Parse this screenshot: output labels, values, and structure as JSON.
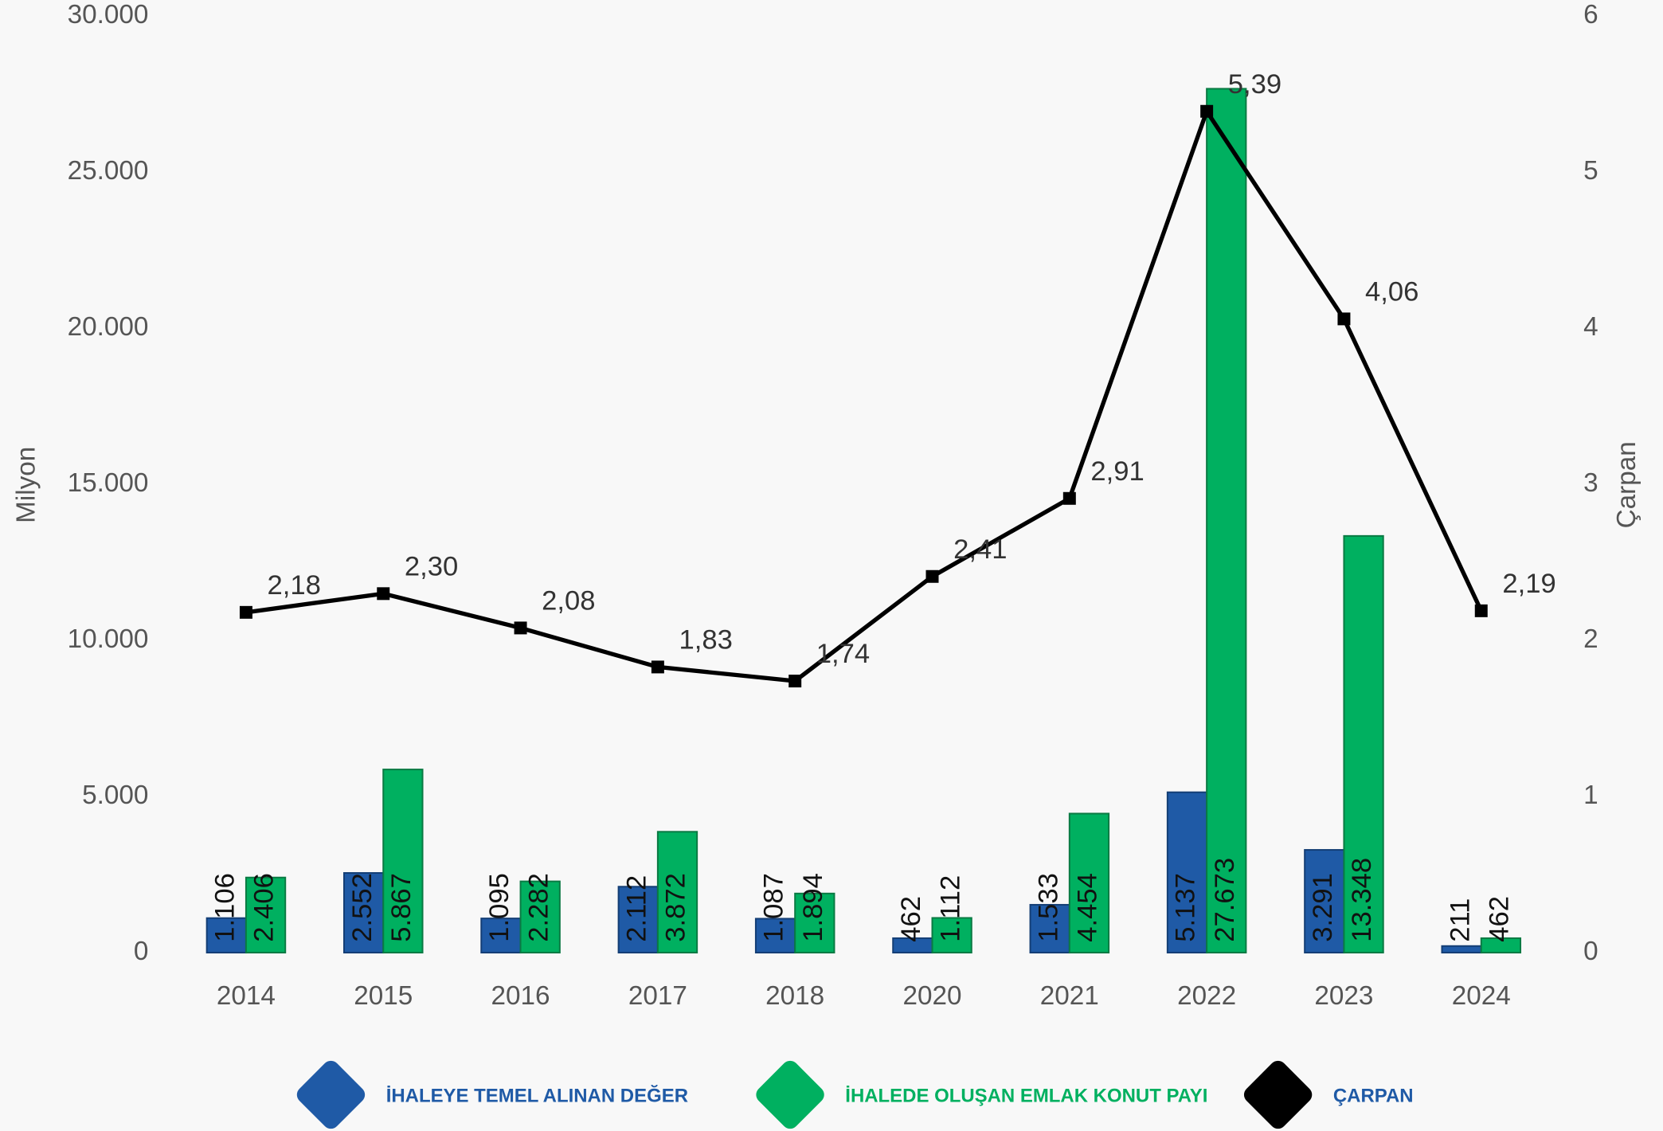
{
  "chart_data": {
    "type": "bar-line",
    "categories": [
      "2014",
      "2015",
      "2016",
      "2017",
      "2018",
      "2020",
      "2021",
      "2022",
      "2023",
      "2024"
    ],
    "series": [
      {
        "name": "İHALEYE TEMEL ALINAN DEĞER",
        "color": "#1f5aa6",
        "type": "bar",
        "values": [
          1106,
          2552,
          1095,
          2112,
          1087,
          462,
          1533,
          5137,
          3291,
          211
        ],
        "value_labels": [
          "1.106",
          "2.552",
          "1.095",
          "2.112",
          "1.087",
          "462",
          "1.533",
          "5.137",
          "3.291",
          "211"
        ]
      },
      {
        "name": "İHALEDE OLUŞAN EMLAK KONUT PAYI",
        "color": "#00b060",
        "type": "bar",
        "values": [
          2406,
          5867,
          2282,
          3872,
          1894,
          1112,
          4454,
          27673,
          13348,
          462
        ],
        "value_labels": [
          "2.406",
          "5.867",
          "2.282",
          "3.872",
          "1.894",
          "1.112",
          "4.454",
          "27.673",
          "13.348",
          "462"
        ]
      },
      {
        "name": "ÇARPAN",
        "color": "#000000",
        "type": "line",
        "axis": "y2",
        "values": [
          2.18,
          2.3,
          2.08,
          1.83,
          1.74,
          2.41,
          2.91,
          5.39,
          4.06,
          2.19
        ],
        "value_labels": [
          "2,18",
          "2,30",
          "2,08",
          "1,83",
          "1,74",
          "2,41",
          "2,91",
          "5,39",
          "4,06",
          "2,19"
        ]
      }
    ],
    "ylabel": "Milyon",
    "y2label": "Çarpan",
    "ylim": [
      0,
      30000
    ],
    "yticks": [
      0,
      {
        "value": 5000,
        "label": "5.000"
      },
      {
        "value": 10000,
        "label": "10.000"
      },
      {
        "value": 15000,
        "label": "15.000"
      },
      {
        "value": 20000,
        "label": "20.000"
      },
      {
        "value": 25000,
        "label": "25.000"
      },
      {
        "value": 30000,
        "label": "30.000"
      }
    ],
    "y2lim": [
      0,
      6
    ],
    "y2ticks": [
      0,
      1,
      2,
      3,
      4,
      5,
      6
    ],
    "legend": "bottom"
  }
}
